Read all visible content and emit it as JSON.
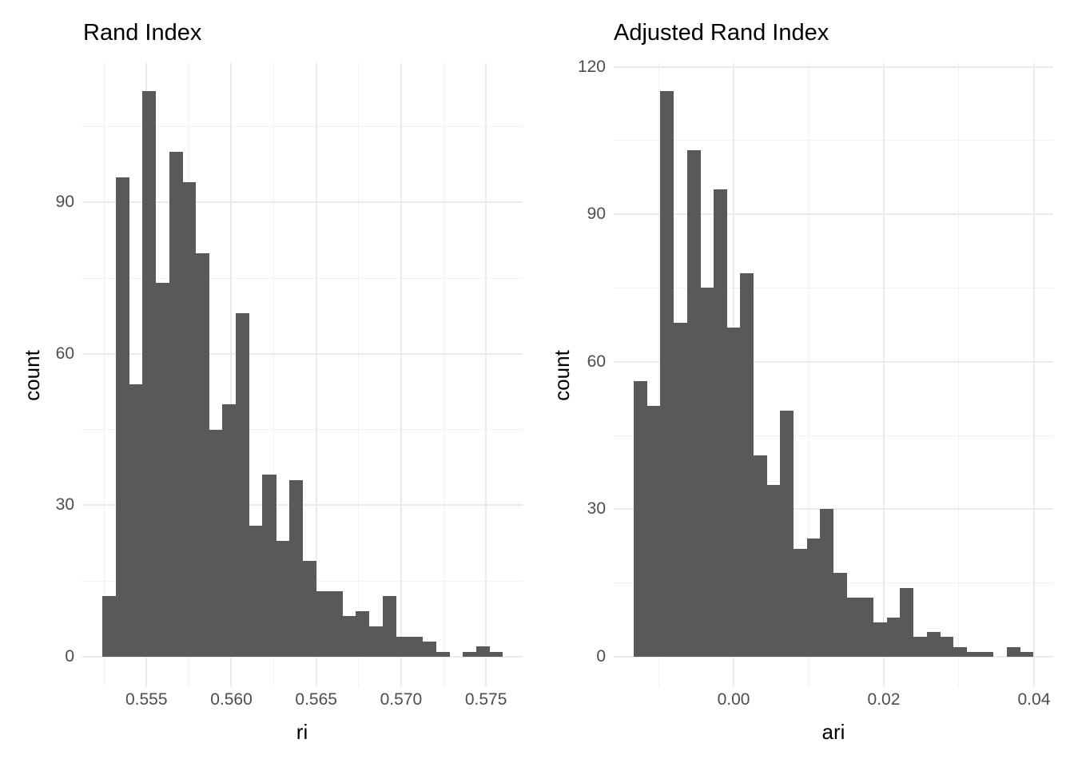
{
  "figure": {
    "background": "#ffffff",
    "total_observations_per_panel": 1000
  },
  "chart_data": [
    {
      "type": "bar",
      "subtype": "histogram",
      "title": "Rand Index",
      "xlabel": "ri",
      "ylabel": "count",
      "bar_color": "#595959",
      "grid_color": "#ebebeb",
      "tick_label_color": "#4d4d4d",
      "title_color": "#000000",
      "grid": true,
      "legend": "none",
      "xlim": [
        0.551221,
        0.577159
      ],
      "ylim": [
        -5.88,
        117.6
      ],
      "bin_start": 0.5524,
      "bin_width": 0.000786,
      "counts": [
        12,
        95,
        54,
        112,
        74,
        100,
        94,
        80,
        45,
        50,
        68,
        26,
        36,
        23,
        35,
        19,
        13,
        13,
        8,
        9,
        6,
        12,
        4,
        4,
        3,
        1,
        0,
        1,
        2,
        1
      ],
      "x_ticks": [
        {
          "value": 0.555,
          "label": "0.555"
        },
        {
          "value": 0.56,
          "label": "0.560"
        },
        {
          "value": 0.565,
          "label": "0.565"
        },
        {
          "value": 0.57,
          "label": "0.570"
        },
        {
          "value": 0.575,
          "label": "0.575"
        }
      ],
      "x_minor": [
        0.5525,
        0.5575,
        0.5625,
        0.5675,
        0.5725
      ],
      "y_ticks": [
        {
          "value": 0,
          "label": "0"
        },
        {
          "value": 30,
          "label": "30"
        },
        {
          "value": 60,
          "label": "60"
        },
        {
          "value": 90,
          "label": "90"
        }
      ],
      "y_minor": [
        15,
        45,
        75,
        105
      ]
    },
    {
      "type": "bar",
      "subtype": "histogram",
      "title": "Adjusted Rand Index",
      "xlabel": "ari",
      "ylabel": "count",
      "bar_color": "#595959",
      "grid_color": "#ebebeb",
      "tick_label_color": "#4d4d4d",
      "title_color": "#000000",
      "grid": true,
      "legend": "none",
      "xlim": [
        -0.01596,
        0.04256
      ],
      "ylim": [
        -6.04,
        120.75
      ],
      "bin_start": -0.0133,
      "bin_width": 0.001773,
      "counts": [
        56,
        51,
        115,
        68,
        103,
        75,
        95,
        67,
        78,
        41,
        35,
        50,
        22,
        24,
        30,
        17,
        12,
        12,
        7,
        8,
        14,
        4,
        5,
        4,
        2,
        1,
        1,
        0,
        2,
        1
      ],
      "x_ticks": [
        {
          "value": 0.0,
          "label": "0.00"
        },
        {
          "value": 0.02,
          "label": "0.02"
        },
        {
          "value": 0.04,
          "label": "0.04"
        }
      ],
      "x_minor": [
        -0.01,
        0.01,
        0.03
      ],
      "y_ticks": [
        {
          "value": 0,
          "label": "0"
        },
        {
          "value": 30,
          "label": "30"
        },
        {
          "value": 60,
          "label": "60"
        },
        {
          "value": 90,
          "label": "90"
        },
        {
          "value": 120,
          "label": "120"
        }
      ],
      "y_minor": [
        15,
        45,
        75,
        105
      ]
    }
  ]
}
